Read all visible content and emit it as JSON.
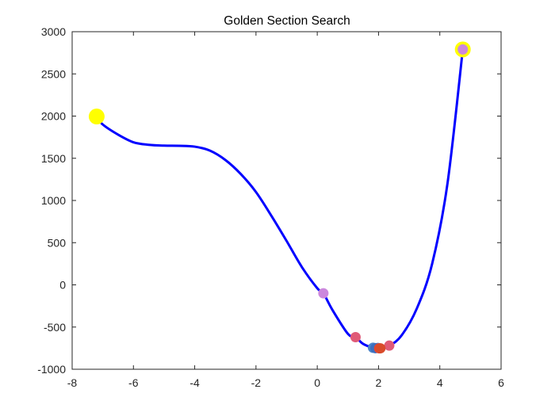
{
  "chart_data": {
    "type": "line",
    "title": "Golden Section Search",
    "xlabel": "",
    "ylabel": "",
    "xlim": [
      -8,
      6
    ],
    "ylim": [
      -1000,
      3000
    ],
    "x_ticks": [
      -8,
      -6,
      -4,
      -2,
      0,
      2,
      4,
      6
    ],
    "x_tick_labels": [
      "-8",
      "-6",
      "-4",
      "-2",
      "0",
      "2",
      "4",
      "6"
    ],
    "y_ticks": [
      3000,
      2500,
      2000,
      1500,
      1000,
      500,
      0,
      -500,
      -1000
    ],
    "y_tick_labels": [
      "3000",
      "2500",
      "2000",
      "1500",
      "1000",
      "500",
      "0",
      "-500",
      "-1000"
    ],
    "grid": false,
    "box": true,
    "curve": {
      "color": "#0000ff",
      "x": [
        -7.2,
        -7.0,
        -6.5,
        -6.0,
        -5.5,
        -5.0,
        -4.5,
        -4.0,
        -3.5,
        -3.0,
        -2.5,
        -2.0,
        -1.5,
        -1.0,
        -0.5,
        0.0,
        0.2,
        0.5,
        1.0,
        1.25,
        1.5,
        1.85,
        2.0,
        2.35,
        2.75,
        3.25,
        3.75,
        4.25,
        4.75
      ],
      "y": [
        1995,
        1900,
        1780,
        1690,
        1660,
        1650,
        1648,
        1638,
        1590,
        1480,
        1315,
        1100,
        820,
        520,
        210,
        -40,
        -100,
        -300,
        -580,
        -620,
        -700,
        -750,
        -755,
        -720,
        -600,
        -280,
        250,
        1200,
        2790
      ]
    },
    "markers": [
      {
        "x": -7.2,
        "y": 1995,
        "color": "#ffff00",
        "size": "large"
      },
      {
        "x": 4.75,
        "y": 2790,
        "color": "#ffff00",
        "size": "large"
      },
      {
        "x": 4.75,
        "y": 2790,
        "color": "#cc88dd",
        "size": "medium"
      },
      {
        "x": 0.2,
        "y": -100,
        "color": "#cc88dd",
        "size": "medium"
      },
      {
        "x": 1.25,
        "y": -620,
        "color": "#e05a77",
        "size": "medium"
      },
      {
        "x": 2.35,
        "y": -720,
        "color": "#e05a77",
        "size": "medium"
      },
      {
        "x": 1.82,
        "y": -745,
        "color": "#4c85c9",
        "size": "medium"
      },
      {
        "x": 1.98,
        "y": -748,
        "color": "#4c85c9",
        "size": "medium"
      },
      {
        "x": 1.9,
        "y": -750,
        "color": "#3c6fbf",
        "size": "medium"
      },
      {
        "x": 2.02,
        "y": -752,
        "color": "#e8432f",
        "size": "medium"
      },
      {
        "x": 2.06,
        "y": -752,
        "color": "#d94b2a",
        "size": "medium"
      }
    ]
  }
}
